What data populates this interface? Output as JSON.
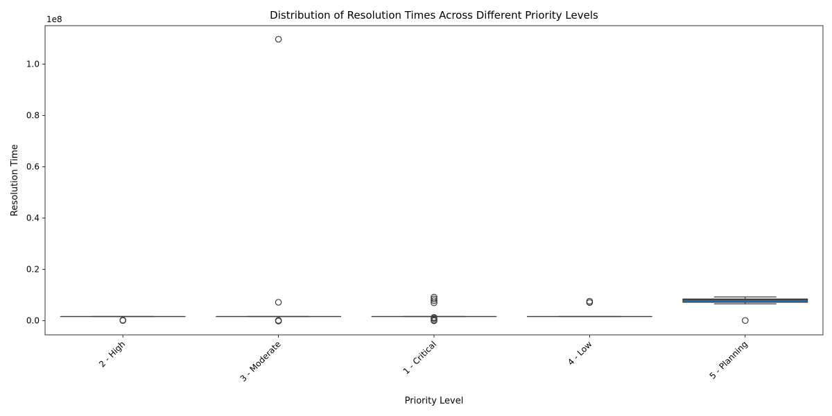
{
  "chart_data": {
    "type": "box",
    "title": "Distribution of Resolution Times Across Different Priority Levels",
    "xlabel": "Priority Level",
    "ylabel": "Resolution Time",
    "y_offset_text": "1e8",
    "ylim": [
      -5500000,
      115000000
    ],
    "y_ticks": [
      0,
      20000000,
      40000000,
      60000000,
      80000000,
      100000000
    ],
    "y_tick_labels": [
      "0.0",
      "0.2",
      "0.4",
      "0.6",
      "0.8",
      "1.0"
    ],
    "categories": [
      "2 - High",
      "3 - Moderate",
      "1 - Critical",
      "4 - Low",
      "5 - Planning"
    ],
    "boxes": [
      {
        "category": "2 - High",
        "whisker_low": 1650000,
        "q1": 1650000,
        "median": 1650000,
        "q3": 1650000,
        "whisker_high": 1650000,
        "outliers": [
          100000,
          250000
        ]
      },
      {
        "category": "3 - Moderate",
        "whisker_low": 1650000,
        "q1": 1650000,
        "median": 1650000,
        "q3": 1650000,
        "whisker_high": 1650000,
        "outliers": [
          109700000,
          7200000,
          150000,
          -100000,
          0
        ]
      },
      {
        "category": "1 - Critical",
        "whisker_low": 1650000,
        "q1": 1650000,
        "median": 1650000,
        "q3": 1650000,
        "whisker_high": 1650000,
        "outliers": [
          9200000,
          8500000,
          7800000,
          7000000,
          1300000,
          900000,
          300000,
          0
        ]
      },
      {
        "category": "4 - Low",
        "whisker_low": 1650000,
        "q1": 1650000,
        "median": 1650000,
        "q3": 1650000,
        "whisker_high": 1650000,
        "outliers": [
          7600000,
          7100000
        ]
      },
      {
        "category": "5 - Planning",
        "whisker_low": 6600000,
        "q1": 7200000,
        "median": 8200000,
        "q3": 8500000,
        "whisker_high": 9300000,
        "outliers": [
          100000
        ]
      }
    ],
    "colors": {
      "box_fill": "#2d6fa6",
      "line": "#3a3a3a"
    },
    "grid": false
  }
}
